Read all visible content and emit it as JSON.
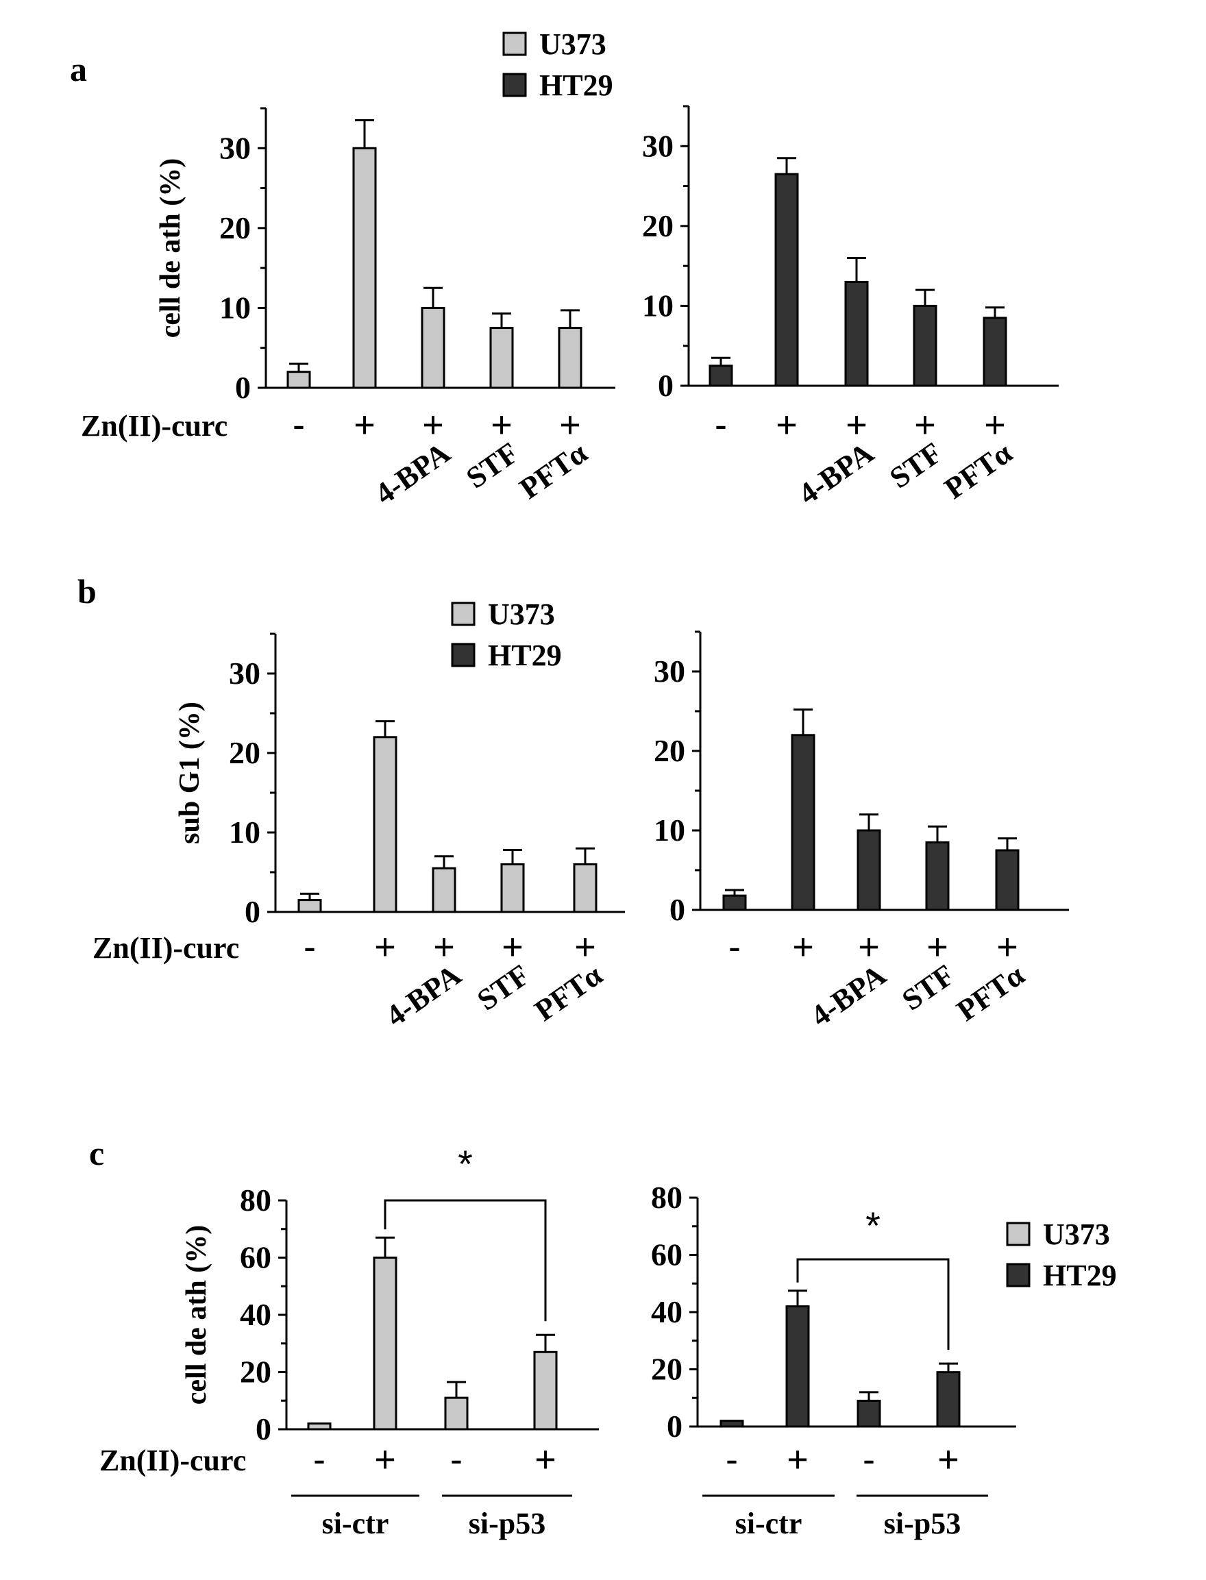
{
  "panels": [
    {
      "letter": "a"
    },
    {
      "letter": "b"
    },
    {
      "letter": "c"
    }
  ],
  "legend": {
    "entries": [
      {
        "name": "U373",
        "color": "#c8c8c8"
      },
      {
        "name": "HT29",
        "color": "#333333"
      }
    ]
  },
  "chart_data": [
    {
      "id": "a-U373",
      "panel": "a",
      "type": "bar",
      "series": "U373",
      "color": "#c8c8c8",
      "ylabel": "cell de ath (%)",
      "ylim": [
        0,
        35
      ],
      "yticks": [
        0,
        10,
        20,
        30
      ],
      "row_label": "Zn(II)-curc",
      "signs": [
        "-",
        "+",
        "+",
        "+",
        "+"
      ],
      "treatments": [
        "",
        "",
        "4-BPA",
        "STF",
        "PFTα"
      ],
      "values": [
        2,
        30,
        10,
        7.5,
        7.5
      ],
      "errors": [
        1,
        3.5,
        2.5,
        1.8,
        2.2
      ]
    },
    {
      "id": "a-HT29",
      "panel": "a",
      "type": "bar",
      "series": "HT29",
      "color": "#333333",
      "ylabel": "",
      "ylim": [
        0,
        35
      ],
      "yticks": [
        0,
        10,
        20,
        30
      ],
      "row_label": "",
      "signs": [
        "-",
        "+",
        "+",
        "+",
        "+"
      ],
      "treatments": [
        "",
        "",
        "4-BPA",
        "STF",
        "PFTα"
      ],
      "values": [
        2.5,
        26.5,
        13,
        10,
        8.5
      ],
      "errors": [
        1,
        2,
        3,
        2,
        1.3
      ]
    },
    {
      "id": "b-U373",
      "panel": "b",
      "type": "bar",
      "series": "U373",
      "color": "#c8c8c8",
      "ylabel": "sub G1 (%)",
      "ylim": [
        0,
        35
      ],
      "yticks": [
        0,
        10,
        20,
        30
      ],
      "row_label": "Zn(II)-curc",
      "signs": [
        "-",
        "+",
        "+",
        "+",
        "+"
      ],
      "treatments": [
        "",
        "",
        "4-BPA",
        "STF",
        "PFTα"
      ],
      "values": [
        1.5,
        22,
        5.5,
        6,
        6
      ],
      "errors": [
        0.8,
        2,
        1.5,
        1.8,
        2
      ]
    },
    {
      "id": "b-HT29",
      "panel": "b",
      "type": "bar",
      "series": "HT29",
      "color": "#333333",
      "ylabel": "",
      "ylim": [
        0,
        35
      ],
      "yticks": [
        0,
        10,
        20,
        30
      ],
      "row_label": "",
      "signs": [
        "-",
        "+",
        "+",
        "+",
        "+"
      ],
      "treatments": [
        "",
        "",
        "4-BPA",
        "STF",
        "PFTα"
      ],
      "values": [
        1.8,
        22,
        10,
        8.5,
        7.5
      ],
      "errors": [
        0.7,
        3.2,
        2,
        2,
        1.5
      ]
    },
    {
      "id": "c-U373",
      "panel": "c",
      "type": "bar",
      "series": "U373",
      "color": "#c8c8c8",
      "ylabel": "cell de ath (%)",
      "ylim": [
        0,
        80
      ],
      "yticks": [
        0,
        20,
        40,
        60,
        80
      ],
      "row_label": "Zn(II)-curc",
      "signs": [
        "-",
        "+",
        "-",
        "+"
      ],
      "groups": [
        {
          "label": "si-ctr",
          "bars": [
            0,
            1
          ]
        },
        {
          "label": "si-p53",
          "bars": [
            2,
            3
          ]
        }
      ],
      "values": [
        2,
        60,
        11,
        27
      ],
      "errors": [
        0,
        7,
        5.5,
        6
      ],
      "significance": {
        "from": 1,
        "to": 3,
        "label": "*"
      }
    },
    {
      "id": "c-HT29",
      "panel": "c",
      "type": "bar",
      "series": "HT29",
      "color": "#333333",
      "ylabel": "",
      "ylim": [
        0,
        80
      ],
      "yticks": [
        0,
        20,
        40,
        60,
        80
      ],
      "row_label": "",
      "signs": [
        "-",
        "+",
        "-",
        "+"
      ],
      "groups": [
        {
          "label": "si-ctr",
          "bars": [
            0,
            1
          ]
        },
        {
          "label": "si-p53",
          "bars": [
            2,
            3
          ]
        }
      ],
      "values": [
        2,
        42,
        9,
        19
      ],
      "errors": [
        0,
        5.5,
        3,
        3
      ],
      "significance": {
        "from": 1,
        "to": 3,
        "label": "*"
      }
    }
  ]
}
